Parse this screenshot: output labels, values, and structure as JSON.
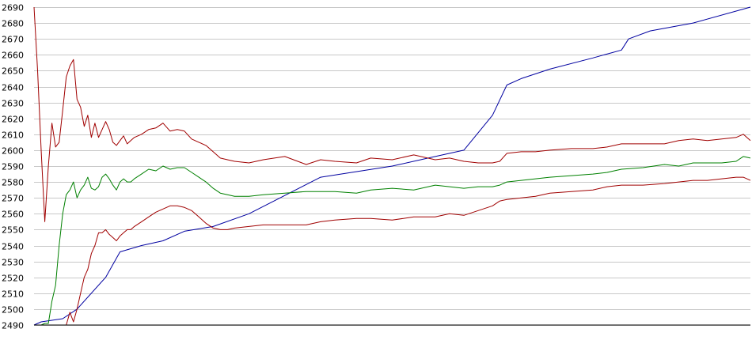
{
  "chart_data": {
    "type": "line",
    "title": "",
    "xlabel": "",
    "ylabel": "",
    "ylim": [
      2490,
      2690
    ],
    "xlim": [
      0,
      100
    ],
    "y_ticks": [
      2490,
      2500,
      2510,
      2520,
      2530,
      2540,
      2550,
      2560,
      2570,
      2580,
      2590,
      2600,
      2610,
      2620,
      2630,
      2640,
      2650,
      2660,
      2670,
      2680,
      2690
    ],
    "grid": true,
    "legend": "none",
    "series": [
      {
        "color": "#0000a0",
        "x": [
          0,
          1,
          4,
          6,
          10,
          12,
          15,
          18,
          21,
          25,
          30,
          40,
          50,
          55,
          60,
          64,
          66,
          68,
          72,
          78,
          82,
          83,
          86,
          92,
          100
        ],
        "y": [
          2490,
          2492,
          2494,
          2500,
          2520,
          2536,
          2540,
          2543,
          2549,
          2552,
          2560,
          2583,
          2590,
          2595,
          2600,
          2622,
          2641,
          2645,
          2651,
          2658,
          2663,
          2670,
          2675,
          2680,
          2690
        ]
      },
      {
        "color": "#a00000",
        "x": [
          0,
          0.5,
          1,
          1.5,
          2,
          2.5,
          3,
          3.5,
          4,
          4.5,
          5,
          5.5,
          6,
          6.5,
          7,
          7.5,
          8,
          8.5,
          9,
          9.5,
          10,
          10.5,
          11,
          11.5,
          12,
          12.5,
          13,
          13.5,
          14,
          15,
          16,
          17,
          18,
          19,
          20,
          21,
          22,
          23,
          24,
          25,
          26,
          27,
          28,
          30,
          32,
          35,
          38,
          40,
          42,
          45,
          47,
          50,
          53,
          56,
          58,
          60,
          62,
          64,
          65,
          66,
          68,
          70,
          72,
          75,
          78,
          80,
          82,
          85,
          88,
          90,
          92,
          94,
          96,
          98,
          99,
          100
        ],
        "y": [
          2690,
          2650,
          2600,
          2555,
          2590,
          2617,
          2602,
          2605,
          2625,
          2646,
          2653,
          2657,
          2632,
          2627,
          2615,
          2622,
          2608,
          2617,
          2608,
          2613,
          2618,
          2613,
          2605,
          2603,
          2606,
          2609,
          2604,
          2606,
          2608,
          2610,
          2613,
          2614,
          2617,
          2612,
          2613,
          2612,
          2607,
          2605,
          2603,
          2599,
          2595,
          2594,
          2593,
          2592,
          2594,
          2596,
          2591,
          2594,
          2593,
          2592,
          2595,
          2594,
          2597,
          2594,
          2595,
          2593,
          2592,
          2592,
          2593,
          2598,
          2599,
          2599,
          2600,
          2601,
          2601,
          2602,
          2604,
          2604,
          2604,
          2606,
          2607,
          2606,
          2607,
          2608,
          2610,
          2606
        ]
      },
      {
        "color": "#008000",
        "x": [
          0,
          1,
          1.5,
          2,
          2.5,
          3,
          3.5,
          4,
          4.5,
          5,
          5.5,
          6,
          6.5,
          7,
          7.5,
          8,
          8.5,
          9,
          9.5,
          10,
          10.5,
          11,
          11.5,
          12,
          12.5,
          13,
          13.5,
          14,
          15,
          16,
          17,
          18,
          19,
          20,
          21,
          22,
          23,
          24,
          25,
          26,
          27,
          28,
          30,
          32,
          35,
          38,
          40,
          42,
          45,
          47,
          50,
          53,
          56,
          58,
          60,
          62,
          64,
          65,
          66,
          68,
          70,
          72,
          75,
          78,
          80,
          82,
          85,
          88,
          90,
          92,
          94,
          96,
          98,
          99,
          100
        ],
        "y": [
          2490,
          2490,
          2491,
          2491,
          2505,
          2515,
          2540,
          2560,
          2572,
          2575,
          2580,
          2570,
          2575,
          2578,
          2583,
          2576,
          2575,
          2577,
          2583,
          2585,
          2582,
          2578,
          2575,
          2580,
          2582,
          2580,
          2580,
          2582,
          2585,
          2588,
          2587,
          2590,
          2588,
          2589,
          2589,
          2586,
          2583,
          2580,
          2576,
          2573,
          2572,
          2571,
          2571,
          2572,
          2573,
          2574,
          2574,
          2574,
          2573,
          2575,
          2576,
          2575,
          2578,
          2577,
          2576,
          2577,
          2577,
          2578,
          2580,
          2581,
          2582,
          2583,
          2584,
          2585,
          2586,
          2588,
          2589,
          2591,
          2590,
          2592,
          2592,
          2592,
          2593,
          2596,
          2595
        ]
      },
      {
        "color": "#a00000",
        "x": [
          0,
          1,
          2,
          3,
          4,
          4.5,
          5,
          5.5,
          6,
          6.5,
          7,
          7.5,
          8,
          8.5,
          9,
          9.5,
          10,
          10.5,
          11,
          11.5,
          12,
          12.5,
          13,
          13.5,
          14,
          15,
          16,
          17,
          18,
          19,
          20,
          21,
          22,
          23,
          24,
          25,
          26,
          27,
          28,
          30,
          32,
          35,
          38,
          40,
          42,
          45,
          47,
          50,
          53,
          56,
          58,
          60,
          62,
          64,
          65,
          66,
          68,
          70,
          72,
          75,
          78,
          80,
          82,
          85,
          88,
          90,
          92,
          94,
          96,
          98,
          99,
          100
        ],
        "y": [
          2490,
          2490,
          2490,
          2490,
          2490,
          2490,
          2498,
          2492,
          2500,
          2510,
          2520,
          2525,
          2535,
          2540,
          2548,
          2548,
          2550,
          2547,
          2545,
          2543,
          2546,
          2548,
          2550,
          2550,
          2552,
          2555,
          2558,
          2561,
          2563,
          2565,
          2565,
          2564,
          2562,
          2558,
          2554,
          2551,
          2550,
          2550,
          2551,
          2552,
          2553,
          2553,
          2553,
          2555,
          2556,
          2557,
          2557,
          2556,
          2558,
          2558,
          2560,
          2559,
          2562,
          2565,
          2568,
          2569,
          2570,
          2571,
          2573,
          2574,
          2575,
          2577,
          2578,
          2578,
          2579,
          2580,
          2581,
          2581,
          2582,
          2583,
          2583,
          2581
        ]
      }
    ]
  }
}
